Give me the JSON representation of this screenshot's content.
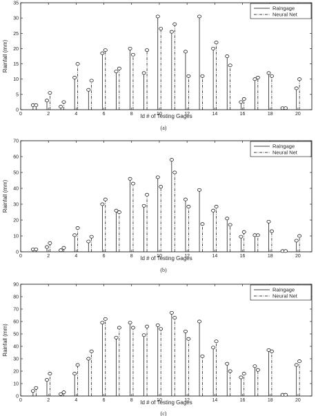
{
  "chart_data": [
    {
      "type": "stem",
      "panel_label": "(a)",
      "xlabel": "Id # of Testing Gages",
      "ylabel": "Rainfall (mm)",
      "xlim": [
        0,
        21
      ],
      "ylim": [
        0,
        35
      ],
      "xticks": [
        0,
        2,
        4,
        6,
        8,
        10,
        12,
        14,
        16,
        18,
        20
      ],
      "yticks": [
        0,
        5,
        10,
        15,
        20,
        25,
        30,
        35
      ],
      "legend_position": "top-right",
      "categories": [
        1,
        2,
        3,
        4,
        5,
        6,
        7,
        8,
        9,
        10,
        11,
        12,
        13,
        14,
        15,
        16,
        17,
        18,
        19,
        20
      ],
      "series": [
        {
          "name": "Raingage",
          "style": "solid",
          "values": [
            1.5,
            3,
            1,
            10.5,
            6.5,
            18.5,
            12.5,
            20,
            12,
            30.5,
            25.5,
            19,
            30.5,
            20,
            17.5,
            2.5,
            10,
            12,
            0.5,
            7
          ]
        },
        {
          "name": "Neural Net",
          "style": "dashdot",
          "values": [
            1.5,
            5.5,
            2.5,
            15,
            9.5,
            19.5,
            13.5,
            18,
            19.5,
            26.5,
            28,
            11,
            11,
            22,
            14.5,
            3.5,
            10.5,
            11,
            0.5,
            10
          ]
        }
      ]
    },
    {
      "type": "stem",
      "panel_label": "(b)",
      "xlabel": "Id # of Testing Gages",
      "ylabel": "Rainfall (mm)",
      "xlim": [
        0,
        21
      ],
      "ylim": [
        0,
        70
      ],
      "xticks": [
        0,
        2,
        4,
        6,
        8,
        10,
        12,
        14,
        16,
        18,
        20
      ],
      "yticks": [
        0,
        10,
        20,
        30,
        40,
        50,
        60,
        70
      ],
      "legend_position": "top-right",
      "categories": [
        1,
        2,
        3,
        4,
        5,
        6,
        7,
        8,
        9,
        10,
        11,
        12,
        13,
        14,
        15,
        16,
        17,
        18,
        19,
        20
      ],
      "series": [
        {
          "name": "Raingage",
          "style": "solid",
          "values": [
            1.5,
            3,
            1,
            10.5,
            6.5,
            30,
            26,
            46,
            29,
            47,
            58,
            33,
            39,
            26,
            21,
            9.5,
            10.5,
            19,
            0.5,
            7
          ]
        },
        {
          "name": "Neural Net",
          "style": "dashdot",
          "values": [
            1.5,
            5.5,
            2.5,
            15,
            9.5,
            33,
            25,
            43,
            36,
            41,
            50,
            28.5,
            17.5,
            28.5,
            17,
            12.5,
            10.5,
            13,
            0.5,
            10
          ]
        }
      ]
    },
    {
      "type": "stem",
      "panel_label": "(c)",
      "xlabel": "Id # of Testing Gages",
      "ylabel": "Rainfall (mm)",
      "xlim": [
        0,
        21
      ],
      "ylim": [
        0,
        90
      ],
      "xticks": [
        0,
        2,
        4,
        6,
        8,
        10,
        12,
        14,
        16,
        18,
        20
      ],
      "yticks": [
        0,
        10,
        20,
        30,
        40,
        50,
        60,
        70,
        80,
        90
      ],
      "legend_position": "top-right",
      "categories": [
        1,
        2,
        3,
        4,
        5,
        6,
        7,
        8,
        9,
        10,
        11,
        12,
        13,
        14,
        15,
        16,
        17,
        18,
        19,
        20
      ],
      "series": [
        {
          "name": "Raingage",
          "style": "solid",
          "values": [
            4,
            13,
            1.5,
            18,
            30,
            59,
            47,
            59,
            49,
            57,
            67,
            52,
            60,
            39,
            26,
            15,
            24,
            37,
            1,
            25
          ]
        },
        {
          "name": "Neural Net",
          "style": "dashdot",
          "values": [
            6.5,
            18,
            3,
            25,
            36,
            62,
            55,
            55,
            56,
            54,
            63,
            46,
            32,
            44,
            20,
            18,
            21,
            36,
            1,
            28
          ]
        }
      ]
    }
  ]
}
